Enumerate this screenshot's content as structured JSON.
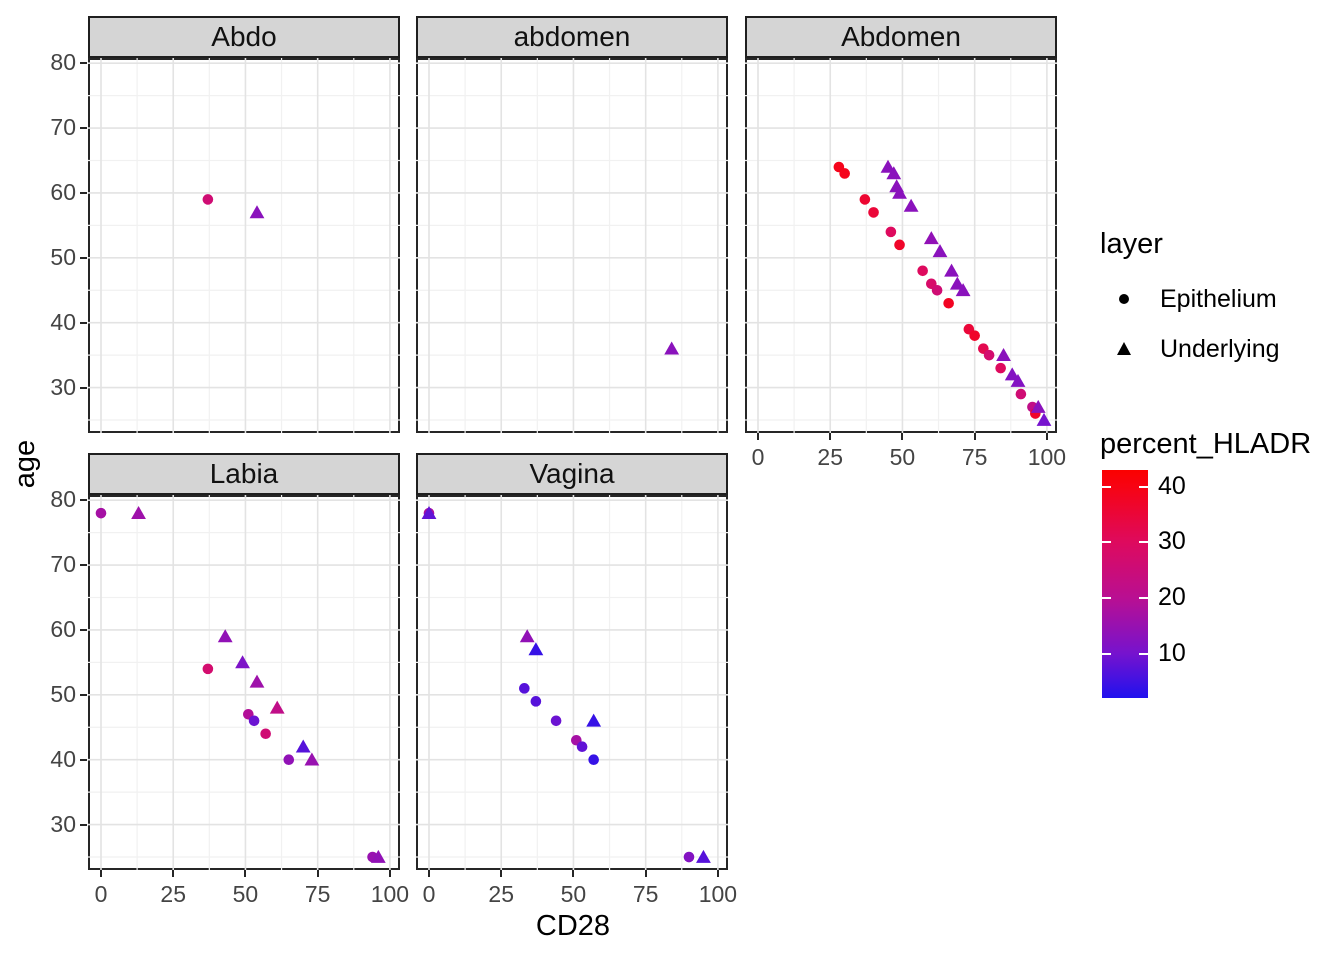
{
  "axes": {
    "x_label": "CD28",
    "y_label": "age",
    "x_ticks": [
      0,
      25,
      50,
      75,
      100
    ],
    "y_ticks": [
      80,
      70,
      60,
      50,
      40,
      30
    ],
    "x_minor": [
      12.5,
      37.5,
      62.5,
      87.5
    ],
    "y_minor": [
      25,
      35,
      45,
      55,
      65,
      75
    ],
    "xlim": [
      -4.5,
      103.5
    ],
    "ylim": [
      23.0,
      80.8
    ]
  },
  "legend": {
    "shape": {
      "title": "layer",
      "items": [
        {
          "label": "Epithelium",
          "shape": "circle"
        },
        {
          "label": "Underlying",
          "shape": "triangle"
        }
      ]
    },
    "color": {
      "title": "percent_HLADR",
      "ticks": [
        40,
        30,
        20,
        10
      ],
      "limits": [
        2,
        43
      ],
      "stops": [
        {
          "value": 2,
          "color": "#2011EE"
        },
        {
          "value": 10,
          "color": "#7613CE"
        },
        {
          "value": 20,
          "color": "#B90F92"
        },
        {
          "value": 30,
          "color": "#DE0A5E"
        },
        {
          "value": 40,
          "color": "#F70313"
        },
        {
          "value": 43,
          "color": "#FB0100"
        }
      ]
    }
  },
  "style": {
    "grid_major": "#e3e3e3",
    "grid_minor": "#f1f1f1",
    "panel_border": "#262626",
    "strip_fill": "#d5d5d5",
    "legend_glyph": "#000000"
  },
  "chart_data": {
    "type": "scatter",
    "x_var": "CD28",
    "y_var": "age",
    "color_var": "percent_HLADR",
    "shape_var": "layer",
    "shape_map": {
      "Epithelium": "circle",
      "Underlying": "triangle"
    },
    "xlim": [
      -4.5,
      103.5
    ],
    "ylim": [
      23.0,
      80.8
    ],
    "facets": [
      {
        "name": "Abdo",
        "points": [
          {
            "layer": "Epithelium",
            "cd28": 37,
            "age": 59,
            "hladr": 26
          },
          {
            "layer": "Underlying",
            "cd28": 54,
            "age": 57,
            "hladr": 13
          }
        ]
      },
      {
        "name": "abdomen",
        "points": [
          {
            "layer": "Underlying",
            "cd28": 84,
            "age": 36,
            "hladr": 13
          }
        ]
      },
      {
        "name": "Abdomen",
        "points": [
          {
            "layer": "Epithelium",
            "cd28": 28,
            "age": 64,
            "hladr": 39
          },
          {
            "layer": "Epithelium",
            "cd28": 30,
            "age": 63,
            "hladr": 39
          },
          {
            "layer": "Epithelium",
            "cd28": 37,
            "age": 59,
            "hladr": 36
          },
          {
            "layer": "Epithelium",
            "cd28": 40,
            "age": 57,
            "hladr": 35
          },
          {
            "layer": "Epithelium",
            "cd28": 46,
            "age": 54,
            "hladr": 30
          },
          {
            "layer": "Epithelium",
            "cd28": 49,
            "age": 52,
            "hladr": 37
          },
          {
            "layer": "Epithelium",
            "cd28": 57,
            "age": 48,
            "hladr": 30
          },
          {
            "layer": "Epithelium",
            "cd28": 60,
            "age": 46,
            "hladr": 28
          },
          {
            "layer": "Epithelium",
            "cd28": 62,
            "age": 45,
            "hladr": 26
          },
          {
            "layer": "Epithelium",
            "cd28": 66,
            "age": 43,
            "hladr": 38
          },
          {
            "layer": "Epithelium",
            "cd28": 73,
            "age": 39,
            "hladr": 35
          },
          {
            "layer": "Epithelium",
            "cd28": 75,
            "age": 38,
            "hladr": 37
          },
          {
            "layer": "Epithelium",
            "cd28": 78,
            "age": 36,
            "hladr": 32
          },
          {
            "layer": "Epithelium",
            "cd28": 80,
            "age": 35,
            "hladr": 27
          },
          {
            "layer": "Epithelium",
            "cd28": 84,
            "age": 33,
            "hladr": 30
          },
          {
            "layer": "Epithelium",
            "cd28": 91,
            "age": 29,
            "hladr": 26
          },
          {
            "layer": "Epithelium",
            "cd28": 95,
            "age": 27,
            "hladr": 22
          },
          {
            "layer": "Epithelium",
            "cd28": 96,
            "age": 26,
            "hladr": 37
          },
          {
            "layer": "Underlying",
            "cd28": 45,
            "age": 64,
            "hladr": 13
          },
          {
            "layer": "Underlying",
            "cd28": 47,
            "age": 63,
            "hladr": 13
          },
          {
            "layer": "Underlying",
            "cd28": 48,
            "age": 61,
            "hladr": 13
          },
          {
            "layer": "Underlying",
            "cd28": 49,
            "age": 60,
            "hladr": 13
          },
          {
            "layer": "Underlying",
            "cd28": 53,
            "age": 58,
            "hladr": 13
          },
          {
            "layer": "Underlying",
            "cd28": 60,
            "age": 53,
            "hladr": 14
          },
          {
            "layer": "Underlying",
            "cd28": 63,
            "age": 51,
            "hladr": 13
          },
          {
            "layer": "Underlying",
            "cd28": 67,
            "age": 48,
            "hladr": 13
          },
          {
            "layer": "Underlying",
            "cd28": 69,
            "age": 46,
            "hladr": 13
          },
          {
            "layer": "Underlying",
            "cd28": 71,
            "age": 45,
            "hladr": 13
          },
          {
            "layer": "Underlying",
            "cd28": 85,
            "age": 35,
            "hladr": 13
          },
          {
            "layer": "Underlying",
            "cd28": 88,
            "age": 32,
            "hladr": 12
          },
          {
            "layer": "Underlying",
            "cd28": 90,
            "age": 31,
            "hladr": 12
          },
          {
            "layer": "Underlying",
            "cd28": 97,
            "age": 27,
            "hladr": 13
          },
          {
            "layer": "Underlying",
            "cd28": 99,
            "age": 25,
            "hladr": 10
          }
        ]
      },
      {
        "name": "Labia",
        "points": [
          {
            "layer": "Epithelium",
            "cd28": 0,
            "age": 78,
            "hladr": 17
          },
          {
            "layer": "Epithelium",
            "cd28": 37,
            "age": 54,
            "hladr": 27
          },
          {
            "layer": "Epithelium",
            "cd28": 51,
            "age": 47,
            "hladr": 19
          },
          {
            "layer": "Epithelium",
            "cd28": 53,
            "age": 46,
            "hladr": 9
          },
          {
            "layer": "Epithelium",
            "cd28": 57,
            "age": 44,
            "hladr": 26
          },
          {
            "layer": "Epithelium",
            "cd28": 65,
            "age": 40,
            "hladr": 14
          },
          {
            "layer": "Epithelium",
            "cd28": 94,
            "age": 25,
            "hladr": 15
          },
          {
            "layer": "Underlying",
            "cd28": 13,
            "age": 78,
            "hladr": 16
          },
          {
            "layer": "Underlying",
            "cd28": 43,
            "age": 59,
            "hladr": 14
          },
          {
            "layer": "Underlying",
            "cd28": 49,
            "age": 55,
            "hladr": 11
          },
          {
            "layer": "Underlying",
            "cd28": 54,
            "age": 52,
            "hladr": 16
          },
          {
            "layer": "Underlying",
            "cd28": 61,
            "age": 48,
            "hladr": 22
          },
          {
            "layer": "Underlying",
            "cd28": 70,
            "age": 42,
            "hladr": 7
          },
          {
            "layer": "Underlying",
            "cd28": 73,
            "age": 40,
            "hladr": 15
          },
          {
            "layer": "Underlying",
            "cd28": 96,
            "age": 25,
            "hladr": 14
          }
        ]
      },
      {
        "name": "Vagina",
        "points": [
          {
            "layer": "Epithelium",
            "cd28": 0,
            "age": 78,
            "hladr": 18
          },
          {
            "layer": "Epithelium",
            "cd28": 33,
            "age": 51,
            "hladr": 7
          },
          {
            "layer": "Epithelium",
            "cd28": 37,
            "age": 49,
            "hladr": 7
          },
          {
            "layer": "Epithelium",
            "cd28": 44,
            "age": 46,
            "hladr": 9
          },
          {
            "layer": "Epithelium",
            "cd28": 51,
            "age": 43,
            "hladr": 17
          },
          {
            "layer": "Epithelium",
            "cd28": 53,
            "age": 42,
            "hladr": 8
          },
          {
            "layer": "Epithelium",
            "cd28": 57,
            "age": 40,
            "hladr": 4
          },
          {
            "layer": "Epithelium",
            "cd28": 90,
            "age": 25,
            "hladr": 12
          },
          {
            "layer": "Underlying",
            "cd28": 0,
            "age": 78,
            "hladr": 8
          },
          {
            "layer": "Underlying",
            "cd28": 34,
            "age": 59,
            "hladr": 14
          },
          {
            "layer": "Underlying",
            "cd28": 37,
            "age": 57,
            "hladr": 4
          },
          {
            "layer": "Underlying",
            "cd28": 57,
            "age": 46,
            "hladr": 4
          },
          {
            "layer": "Underlying",
            "cd28": 95,
            "age": 25,
            "hladr": 7
          }
        ]
      }
    ]
  }
}
